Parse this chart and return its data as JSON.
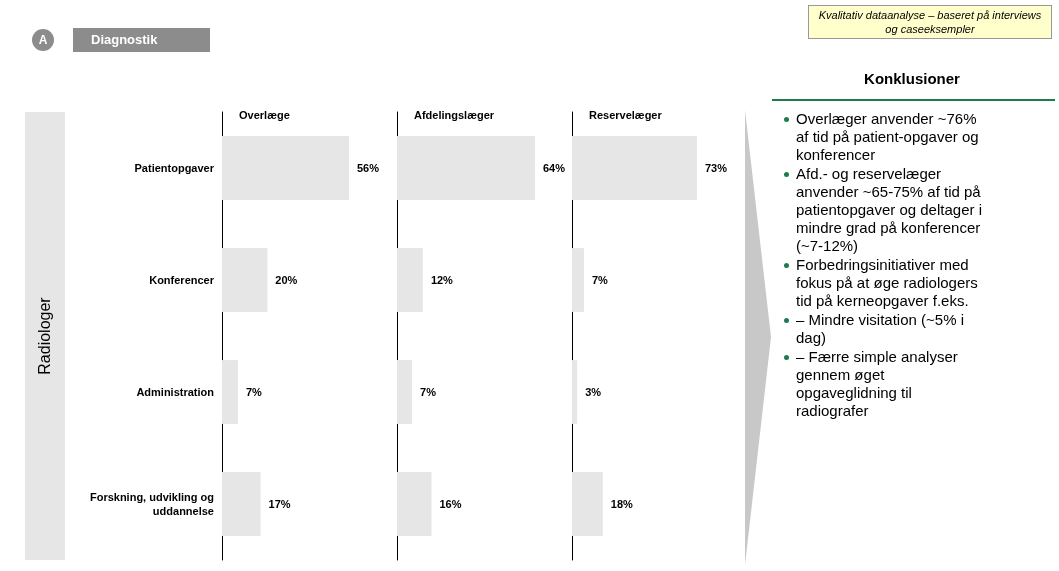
{
  "chart_data": [
    {
      "type": "other",
      "title": "Diagnostik",
      "annotations": [
        "A"
      ]
    },
    {
      "type": "bar",
      "orientation": "horizontal",
      "title": "Overlæge",
      "ylabel": "Radiologer",
      "categories": [
        "Patientopgaver",
        "Konferencer",
        "Administration",
        "Forskning, udvikling og uddannelse"
      ],
      "values": [
        56,
        20,
        7,
        17
      ],
      "value_labels": [
        "56%",
        "20%",
        "7%",
        "17%"
      ],
      "color": "#e6e6e6",
      "tick_labels": "y",
      "grid": false
    },
    {
      "type": "bar",
      "orientation": "horizontal",
      "title": "Afdelingslæger",
      "categories": [
        "Patientopgaver",
        "Konferencer",
        "Administration",
        "Forskning, udvikling og uddannelse"
      ],
      "values": [
        64,
        12,
        7,
        16
      ],
      "value_labels": [
        "64%",
        "12%",
        "7%",
        "16%"
      ],
      "color": "#e6e6e6",
      "tick_labels": false,
      "grid": false
    },
    {
      "type": "bar",
      "orientation": "horizontal",
      "title": "Reservelæger",
      "categories": [
        "Patientopgaver",
        "Konferencer",
        "Administration",
        "Forskning, udvikling og uddannelse"
      ],
      "values": [
        73,
        7,
        3,
        18
      ],
      "value_labels": [
        "73%",
        "7%",
        "3%",
        "18%"
      ],
      "color": "#e6e6e6",
      "tick_labels": false,
      "grid": false
    },
    {
      "type": "other",
      "title": "Konklusioner",
      "subtitle": "Kvalitativ dataanalyse – baseret på interviews og caseeksempler",
      "annotations": [
        "Overlæger anvender ~76% af tid på patient-opgaver og konferencer",
        "Afd.- og reservelæger anvender ~65-75% af tid på patientopgaver og deltager i mindre grad på konferencer (~7-12%)",
        "Forbedringsinitiativer med fokus på at øge radiologers tid på kerneopgaver f.eks.",
        "– Mindre visitation (~5% i dag)",
        "– Færre simple analyser gennem øget opgaveglidning til radiografer"
      ]
    }
  ]
}
